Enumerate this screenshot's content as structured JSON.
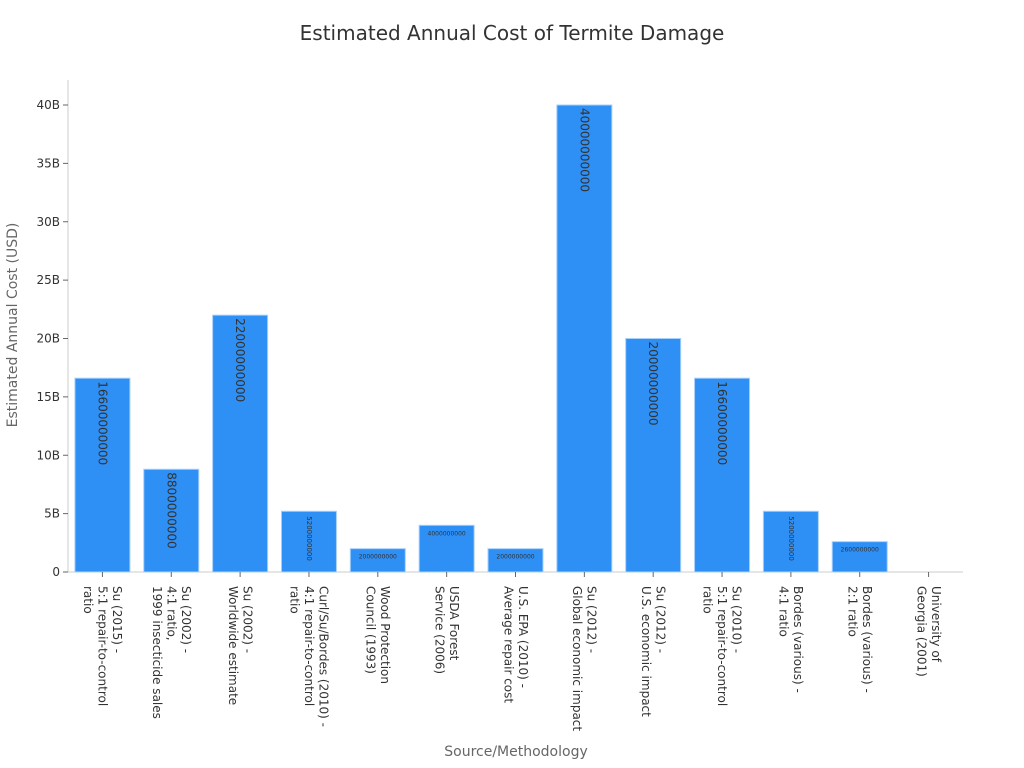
{
  "chart_data": {
    "type": "bar",
    "title": "Estimated Annual Cost of Termite Damage",
    "xlabel": "Source/Methodology",
    "ylabel": "Estimated Annual Cost (USD)",
    "ylim": [
      0,
      42000000000
    ],
    "yticks": [
      0,
      5000000000,
      10000000000,
      15000000000,
      20000000000,
      25000000000,
      30000000000,
      35000000000,
      40000000000
    ],
    "ytick_labels": [
      "0",
      "5B",
      "10B",
      "15B",
      "20B",
      "25B",
      "30B",
      "35B",
      "40B"
    ],
    "grid": false,
    "bar_color": "#2e8ff5",
    "categories": [
      [
        "Su (2015) -",
        "5:1 repair-to-control",
        "ratio"
      ],
      [
        "Su (2002) -",
        "4:1 ratio,",
        "1999 insecticide sales"
      ],
      [
        "Su (2002) -",
        "Worldwide estimate"
      ],
      [
        "Curl/Su/Bordes (2010) -",
        "4:1 repair-to-control",
        "ratio"
      ],
      [
        "Wood Protection",
        "Council (1993)"
      ],
      [
        "USDA Forest",
        "Service (2006)"
      ],
      [
        "U.S. EPA (2010) -",
        "Average repair cost"
      ],
      [
        "Su (2012) -",
        "Global economic impact"
      ],
      [
        "Su (2012) -",
        "U.S. economic impact"
      ],
      [
        "Su (2010) -",
        "5:1 repair-to-control",
        "ratio"
      ],
      [
        "Bordes (various) -",
        "4:1 ratio"
      ],
      [
        "Bordes (various) -",
        "2:1 ratio"
      ],
      [
        "University of",
        "Georgia (2001)"
      ]
    ],
    "values": [
      16600000000,
      8800000000,
      22000000000,
      5200000000,
      2000000000,
      4000000000,
      2000000000,
      40000000000,
      20000000000,
      16600000000,
      5200000000,
      2600000000,
      null
    ],
    "data_labels": [
      "16600000000",
      "8800000000",
      "22000000000",
      "5200000000",
      "2000000000",
      "4000000000",
      "2000000000",
      "40000000000",
      "20000000000",
      "16600000000",
      "5200000000",
      "2600000000",
      ""
    ]
  }
}
